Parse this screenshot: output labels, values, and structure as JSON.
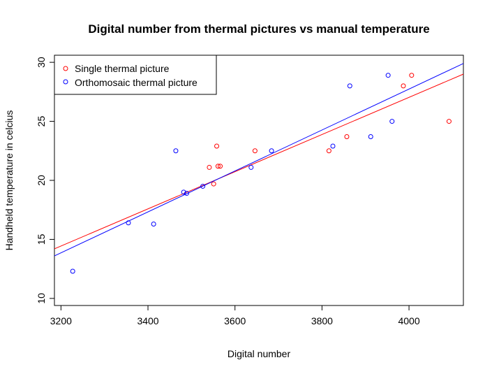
{
  "chart_data": {
    "type": "scatter",
    "title": "Digital number from thermal pictures vs manual temperature",
    "xlabel": "Digital number",
    "ylabel": "Handheld temperature in celcius",
    "xlim": [
      3185,
      4125
    ],
    "ylim": [
      9.4,
      30.6
    ],
    "xticks": [
      3200,
      3400,
      3600,
      3800,
      4000
    ],
    "yticks": [
      10,
      15,
      20,
      25,
      30
    ],
    "grid": false,
    "legend_position": "top-left",
    "series": [
      {
        "name": "Single thermal picture",
        "color": "#ff0000",
        "marker": "open-circle",
        "points": [
          [
            3541,
            21.1
          ],
          [
            3551,
            19.7
          ],
          [
            3558,
            22.9
          ],
          [
            3561,
            21.2
          ],
          [
            3566,
            21.2
          ],
          [
            3646,
            22.5
          ],
          [
            3816,
            22.5
          ],
          [
            3857,
            23.7
          ],
          [
            3987,
            28.0
          ],
          [
            4006,
            28.9
          ],
          [
            4092,
            25.0
          ]
        ],
        "fit_line": [
          [
            3185,
            14.2
          ],
          [
            4125,
            29.0
          ]
        ]
      },
      {
        "name": "Orthomosaic thermal picture",
        "color": "#0000ff",
        "marker": "open-circle",
        "points": [
          [
            3227,
            12.3
          ],
          [
            3355,
            16.4
          ],
          [
            3413,
            16.3
          ],
          [
            3464,
            22.5
          ],
          [
            3482,
            19.0
          ],
          [
            3489,
            18.9
          ],
          [
            3526,
            19.5
          ],
          [
            3637,
            21.1
          ],
          [
            3684,
            22.5
          ],
          [
            3825,
            22.9
          ],
          [
            3864,
            28.0
          ],
          [
            3912,
            23.7
          ],
          [
            3952,
            28.9
          ],
          [
            3961,
            25.0
          ]
        ],
        "fit_line": [
          [
            3185,
            13.6
          ],
          [
            4125,
            29.9
          ]
        ]
      }
    ]
  }
}
